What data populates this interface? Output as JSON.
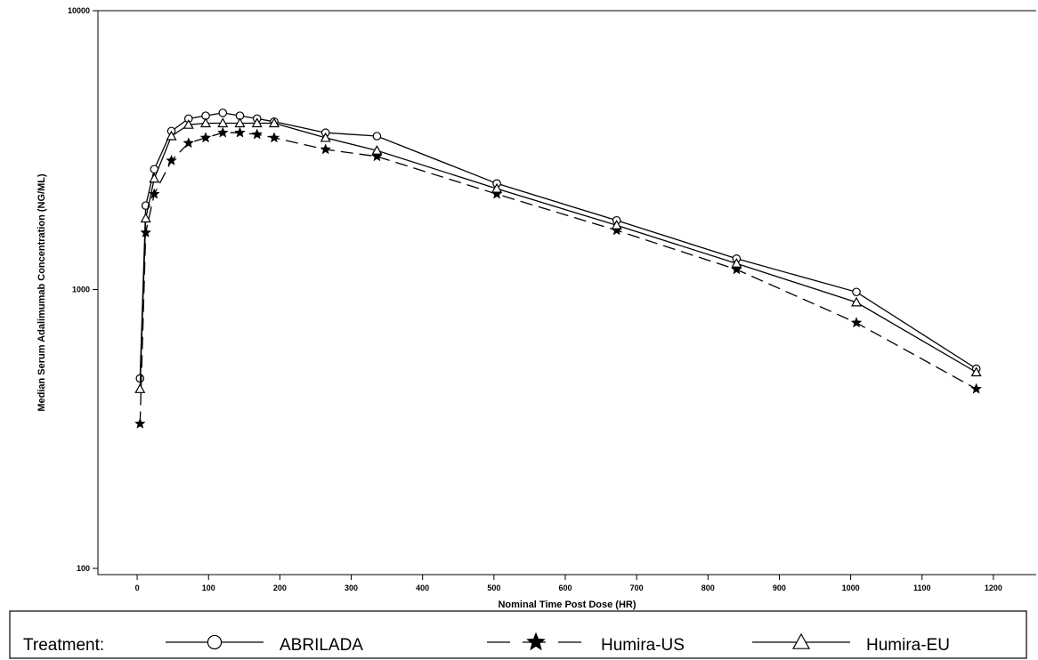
{
  "chart_data": {
    "type": "line",
    "xlabel": "Nominal Time Post Dose (HR)",
    "ylabel": "Median Serum Adalimumab Concentration (NG/ML)",
    "yscale": "log",
    "xlim": [
      -55,
      1260
    ],
    "ylim": [
      95,
      10000
    ],
    "x_ticks": [
      0,
      100,
      200,
      300,
      400,
      500,
      600,
      700,
      800,
      900,
      1000,
      1100,
      1200
    ],
    "y_ticks": [
      100,
      1000,
      10000
    ],
    "legend_title": "Treatment:",
    "legend_position": "bottom",
    "series": [
      {
        "name": "ABRILADA",
        "marker": "circle",
        "dash": "solid",
        "x": [
          4,
          12,
          24,
          48,
          72,
          96,
          120,
          144,
          168,
          192,
          264,
          336,
          504,
          672,
          840,
          1008,
          1176
        ],
        "y": [
          480,
          2000,
          2700,
          3700,
          4100,
          4200,
          4300,
          4200,
          4100,
          4000,
          3650,
          3550,
          2400,
          1770,
          1290,
          980,
          520
        ]
      },
      {
        "name": "Humira-US",
        "marker": "star",
        "dash": "dashed",
        "x": [
          4,
          12,
          24,
          48,
          72,
          96,
          120,
          144,
          168,
          192,
          264,
          336,
          504,
          672,
          840,
          1008,
          1176
        ],
        "y": [
          330,
          1600,
          2200,
          2900,
          3350,
          3500,
          3650,
          3650,
          3600,
          3500,
          3180,
          3000,
          2200,
          1630,
          1180,
          760,
          440
        ]
      },
      {
        "name": "Humira-EU",
        "marker": "triangle",
        "dash": "solid",
        "x": [
          4,
          12,
          24,
          48,
          72,
          96,
          120,
          144,
          168,
          192,
          264,
          336,
          504,
          672,
          840,
          1008,
          1176
        ],
        "y": [
          440,
          1800,
          2500,
          3550,
          3900,
          3950,
          3950,
          3950,
          3950,
          3950,
          3500,
          3150,
          2300,
          1700,
          1240,
          900,
          505
        ]
      }
    ]
  }
}
